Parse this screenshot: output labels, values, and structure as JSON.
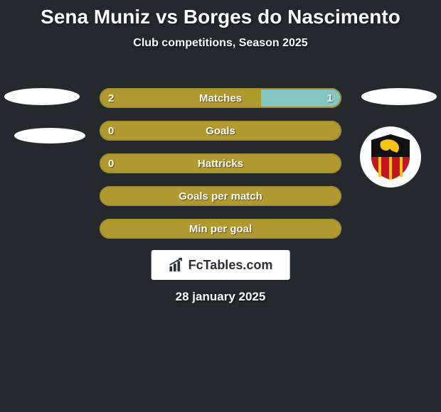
{
  "background_color": "#25282d",
  "title": {
    "text": "Sena Muniz vs Borges do Nascimento",
    "color": "#ffffff",
    "fontsize": 28
  },
  "subtitle": {
    "text": "Club competitions, Season 2025",
    "color": "#ffffff",
    "fontsize": 16
  },
  "row_style": {
    "height": 28,
    "radius": 14,
    "gap": 18,
    "border_color": "#a48e2d",
    "border_width": 2,
    "empty_fill": "#b0992f",
    "left_fill": "#b0992f",
    "right_fill": "#84c7c2",
    "label_color": "#ffffff",
    "label_fontsize": 15,
    "value_fontsize": 15
  },
  "rows": [
    {
      "label": "Matches",
      "left": "2",
      "right": "1",
      "left_pct": 66.7,
      "right_pct": 33.3,
      "show_left": true,
      "show_right": true
    },
    {
      "label": "Goals",
      "left": "0",
      "right": "",
      "left_pct": 100,
      "right_pct": 0,
      "show_left": true,
      "show_right": false
    },
    {
      "label": "Hattricks",
      "left": "0",
      "right": "",
      "left_pct": 100,
      "right_pct": 0,
      "show_left": true,
      "show_right": false
    },
    {
      "label": "Goals per match",
      "left": "",
      "right": "",
      "left_pct": 100,
      "right_pct": 0,
      "show_left": false,
      "show_right": false
    },
    {
      "label": "Min per goal",
      "left": "",
      "right": "",
      "left_pct": 100,
      "right_pct": 0,
      "show_left": false,
      "show_right": false
    }
  ],
  "avatars": {
    "left_ellipse_color": "#ffffff",
    "right_ellipse_color": "#ffffff"
  },
  "club_logo": {
    "bg": "#ffffff",
    "shield_top": "#111111",
    "shield_bottom": "#c4161c",
    "shield_stripes": "#f5c518",
    "lion": "#f5c518"
  },
  "brand": {
    "bg": "#ffffff",
    "text": "FcTables.com",
    "text_color": "#2c2f34",
    "fontsize": 18,
    "icon_color": "#2c2f34"
  },
  "date": {
    "text": "28 january 2025",
    "color": "#ffffff",
    "fontsize": 17
  }
}
